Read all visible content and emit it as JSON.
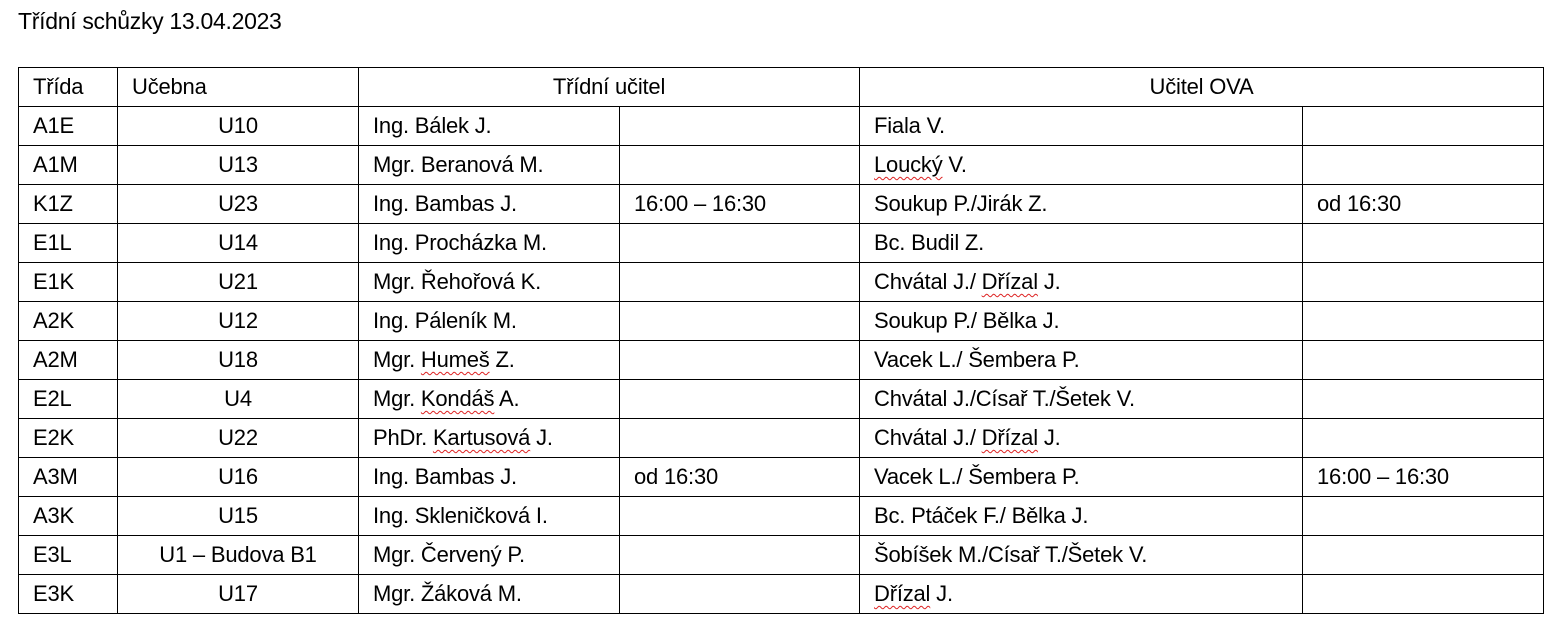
{
  "title": "Třídní schůzky 13.04.2023",
  "headers": {
    "trida": "Třída",
    "ucebna": "Učebna",
    "tridni_ucitel": "Třídní učitel",
    "ucitel_ova": "Učitel OVA"
  },
  "spellcheck_flagged": [
    "Loucký",
    "Dřízal",
    "Humeš",
    "Kondáš",
    "Kartusová"
  ],
  "rows": [
    {
      "trida": "A1E",
      "ucebna": "U10",
      "ucitel": "Ing. Bálek J.",
      "cas_ucitel": "",
      "ova": "Fiala V.",
      "cas_ova": ""
    },
    {
      "trida": "A1M",
      "ucebna": "U13",
      "ucitel": "Mgr. Beranová M.",
      "cas_ucitel": "",
      "ova": "Loucký V.",
      "cas_ova": ""
    },
    {
      "trida": "K1Z",
      "ucebna": "U23",
      "ucitel": "Ing. Bambas J.",
      "cas_ucitel": "16:00 – 16:30",
      "ova": "Soukup P./Jirák Z.",
      "cas_ova": "od 16:30"
    },
    {
      "trida": "E1L",
      "ucebna": "U14",
      "ucitel": "Ing. Procházka M.",
      "cas_ucitel": "",
      "ova": "Bc. Budil Z.",
      "cas_ova": ""
    },
    {
      "trida": "E1K",
      "ucebna": "U21",
      "ucitel": "Mgr. Řehořová K.",
      "cas_ucitel": "",
      "ova": "Chvátal J./ Dřízal J.",
      "cas_ova": ""
    },
    {
      "trida": "A2K",
      "ucebna": "U12",
      "ucitel": "Ing. Páleník M.",
      "cas_ucitel": "",
      "ova": "Soukup P./ Bělka J.",
      "cas_ova": ""
    },
    {
      "trida": "A2M",
      "ucebna": "U18",
      "ucitel": "Mgr. Humeš Z.",
      "cas_ucitel": "",
      "ova": "Vacek L./ Šembera P.",
      "cas_ova": ""
    },
    {
      "trida": "E2L",
      "ucebna": "U4",
      "ucitel": "Mgr. Kondáš A.",
      "cas_ucitel": "",
      "ova": "Chvátal J./Císař T./Šetek V.",
      "cas_ova": ""
    },
    {
      "trida": "E2K",
      "ucebna": "U22",
      "ucitel": "PhDr. Kartusová J.",
      "cas_ucitel": "",
      "ova": "Chvátal J./ Dřízal J.",
      "cas_ova": ""
    },
    {
      "trida": "A3M",
      "ucebna": "U16",
      "ucitel": "Ing. Bambas J.",
      "cas_ucitel": "od 16:30",
      "ova": "Vacek L./ Šembera P.",
      "cas_ova": "16:00 – 16:30"
    },
    {
      "trida": "A3K",
      "ucebna": "U15",
      "ucitel": "Ing. Skleničková I.",
      "cas_ucitel": "",
      "ova": "Bc. Ptáček F./ Bělka J.",
      "cas_ova": ""
    },
    {
      "trida": "E3L",
      "ucebna": "U1 – Budova B1",
      "ucitel": "Mgr. Červený P.",
      "cas_ucitel": "",
      "ova": "Šobíšek M./Císař T./Šetek V.",
      "cas_ova": ""
    },
    {
      "trida": "E3K",
      "ucebna": "U17",
      "ucitel": "Mgr. Žáková M.",
      "cas_ucitel": "",
      "ova": "Dřízal J.",
      "cas_ova": ""
    }
  ]
}
